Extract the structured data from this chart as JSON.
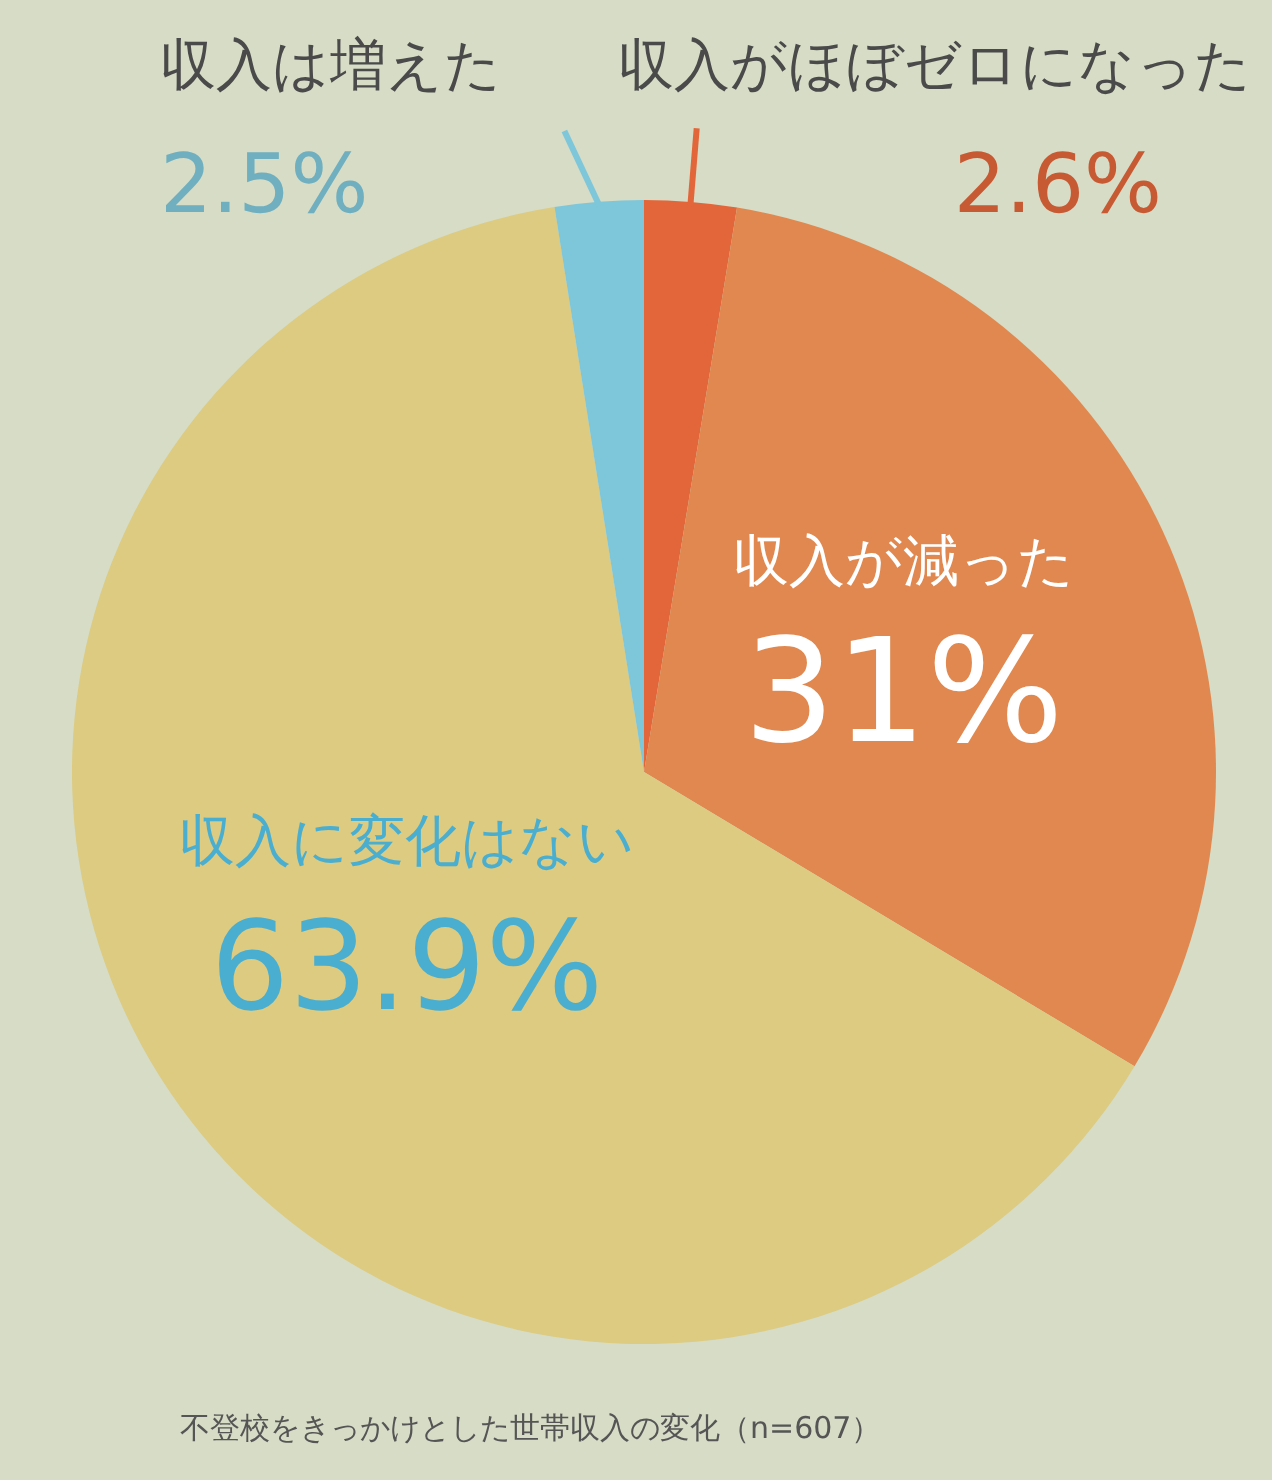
{
  "chart_data": {
    "type": "pie",
    "categories": [
      "収入がほぼゼロになった",
      "収入が減った",
      "収入に変化はない",
      "収入は増えた"
    ],
    "values": [
      2.6,
      31,
      63.9,
      2.5
    ],
    "value_labels": [
      "2.6%",
      "31%",
      "63.9%",
      "2.5%"
    ],
    "colors": [
      "#e2663a",
      "#e0884f",
      "#dccb80",
      "#7ec6d9"
    ],
    "annotations": [
      "不登校をきっかけとした世帯収入の変化（n=607）"
    ]
  }
}
